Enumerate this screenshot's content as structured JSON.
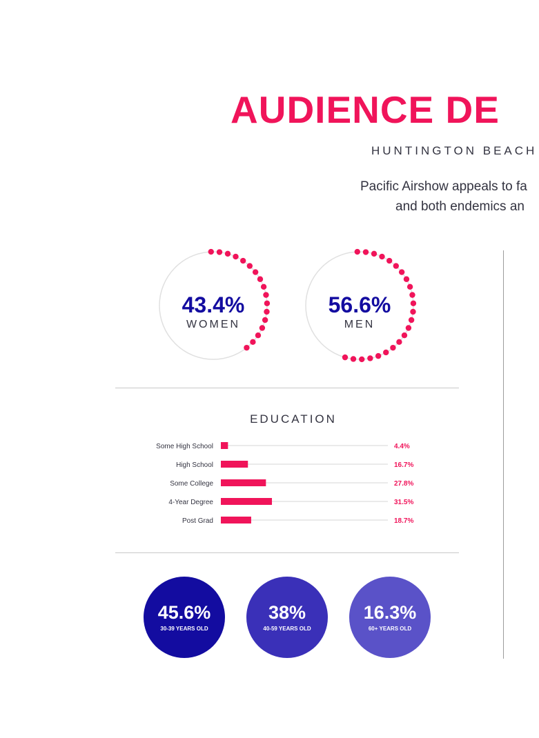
{
  "header": {
    "title": "AUDIENCE DE",
    "subtitle": "HUNTINGTON BEACH",
    "intro_line1": "Pacific Airshow appeals to fa",
    "intro_line2": "and both endemics an"
  },
  "colors": {
    "accent": "#f0145a",
    "navy": "#130ca0",
    "track": "#e0e0e0",
    "age_1": "#130ca0",
    "age_2": "#3a30b8",
    "age_3": "#5a52c8"
  },
  "chart_data": [
    {
      "type": "pie",
      "title": "",
      "slices": [
        {
          "label": "WOMEN",
          "value": 43.4,
          "display": "43.4%"
        },
        {
          "label": "MEN",
          "value": 56.6,
          "display": "56.6%"
        }
      ]
    },
    {
      "type": "bar",
      "orientation": "horizontal",
      "title": "EDUCATION",
      "categories": [
        "Some High School",
        "High School",
        "Some College",
        "4-Year Degree",
        "Post Grad"
      ],
      "values": [
        4.4,
        16.7,
        27.8,
        31.5,
        18.7
      ],
      "value_labels": [
        "4.4%",
        "16.7%",
        "27.8%",
        "31.5%",
        "18.7%"
      ],
      "xlim": [
        0,
        100
      ]
    },
    {
      "type": "bar",
      "title": "",
      "categories": [
        "30-39 YEARS OLD",
        "40-59 YEARS OLD",
        "60+ YEARS OLD"
      ],
      "values": [
        45.6,
        38,
        16.3
      ],
      "value_labels": [
        "45.6%",
        "38%",
        "16.3%"
      ]
    }
  ]
}
